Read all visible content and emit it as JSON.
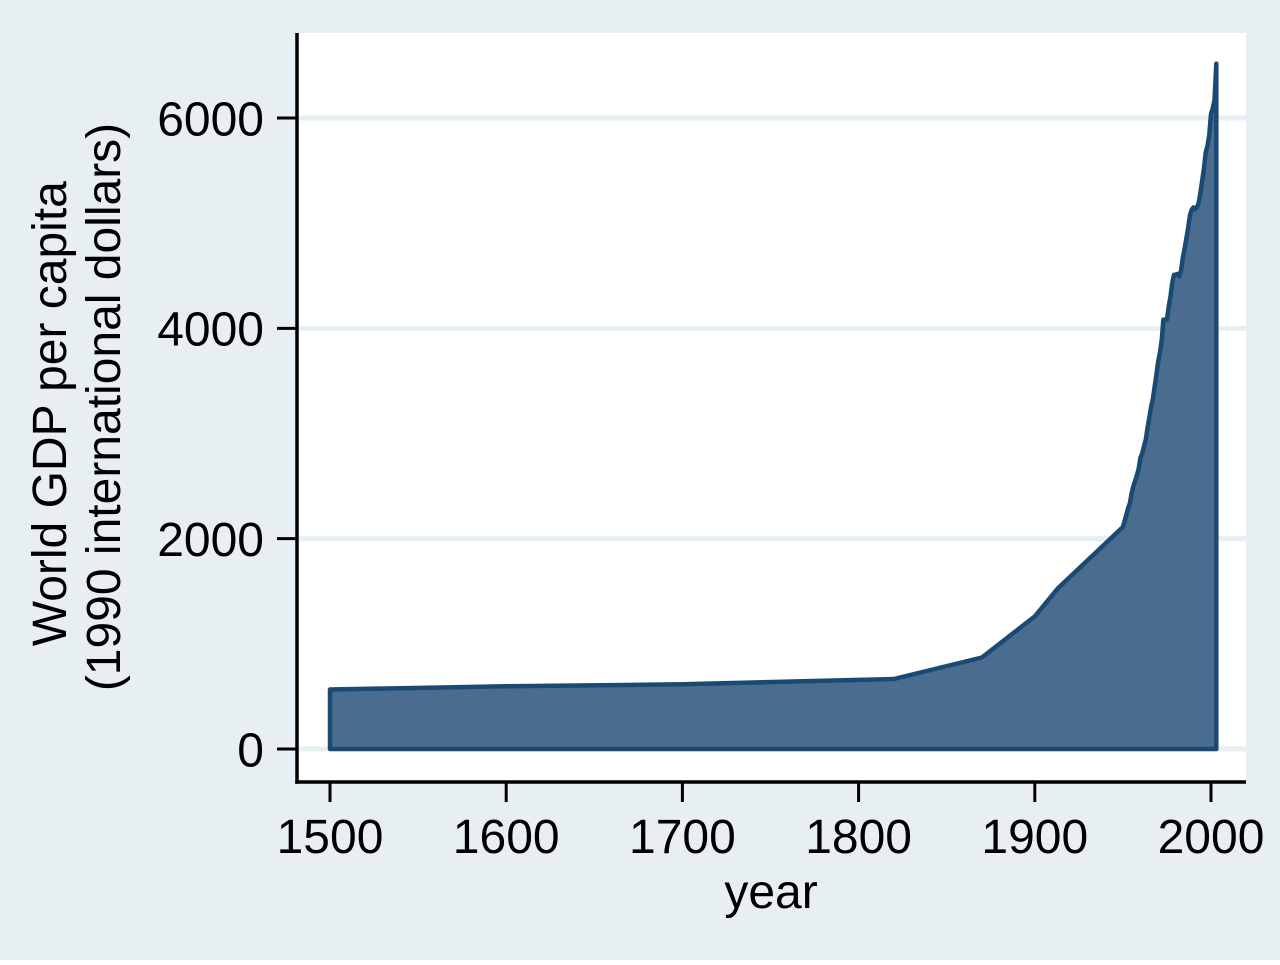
{
  "chart_data": {
    "type": "area",
    "series_name": "World GDP per capita",
    "xlabel": "year",
    "ylabel_lines": [
      "World GDP per capita",
      "(1990 international dollars)"
    ],
    "x_ticks": [
      1500,
      1600,
      1700,
      1800,
      1900,
      2000
    ],
    "y_ticks": [
      0,
      2000,
      4000,
      6000
    ],
    "xlim": [
      1482,
      2020
    ],
    "ylim": [
      0,
      6810
    ],
    "grid": true,
    "legend": "none",
    "x": [
      1500,
      1600,
      1700,
      1820,
      1870,
      1900,
      1913,
      1950,
      1951,
      1952,
      1953,
      1954,
      1955,
      1956,
      1957,
      1958,
      1959,
      1960,
      1961,
      1962,
      1963,
      1964,
      1965,
      1966,
      1967,
      1968,
      1969,
      1970,
      1971,
      1972,
      1973,
      1974,
      1975,
      1976,
      1977,
      1978,
      1979,
      1980,
      1981,
      1982,
      1983,
      1984,
      1985,
      1986,
      1987,
      1988,
      1989,
      1990,
      1991,
      1992,
      1993,
      1994,
      1995,
      1996,
      1997,
      1998,
      1999,
      2000,
      2001,
      2002,
      2003
    ],
    "values": [
      566,
      596,
      615,
      666,
      870,
      1261,
      1526,
      2111,
      2171,
      2231,
      2293,
      2337,
      2436,
      2503,
      2551,
      2604,
      2671,
      2773,
      2813,
      2879,
      2942,
      3059,
      3148,
      3253,
      3331,
      3441,
      3559,
      3678,
      3766,
      3886,
      4083,
      4082,
      4085,
      4206,
      4303,
      4428,
      4509,
      4511,
      4518,
      4495,
      4546,
      4670,
      4758,
      4852,
      4951,
      5072,
      5126,
      5150,
      5133,
      5150,
      5194,
      5288,
      5404,
      5524,
      5672,
      5736,
      5833,
      6038,
      6095,
      6169,
      6516
    ],
    "colors": {
      "background": "#e8eff3",
      "plot_background": "#ffffff",
      "gridline": "#e8eff3",
      "area_fill": "#4a6c8f",
      "area_stroke": "#1a4a73",
      "axis": "#000000",
      "text": "#000000"
    }
  }
}
